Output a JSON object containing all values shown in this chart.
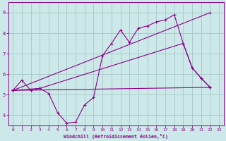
{
  "xlabel": "Windchill (Refroidissement éolien,°C)",
  "bg_color": "#cce8e8",
  "line_color": "#880088",
  "grid_color": "#aacccc",
  "xlim": [
    -0.5,
    23.5
  ],
  "ylim": [
    3.5,
    9.5
  ],
  "yticks": [
    4,
    5,
    6,
    7,
    8,
    9
  ],
  "xticks": [
    0,
    1,
    2,
    3,
    4,
    5,
    6,
    7,
    8,
    9,
    10,
    11,
    12,
    13,
    14,
    15,
    16,
    17,
    18,
    19,
    20,
    21,
    22,
    23
  ],
  "series": [
    {
      "x": [
        0,
        1,
        2,
        3,
        4,
        5,
        6,
        7,
        8,
        9,
        10,
        11,
        12,
        13,
        14,
        15,
        16,
        17,
        18,
        19,
        20,
        21,
        22
      ],
      "y": [
        5.2,
        5.7,
        5.2,
        5.3,
        5.05,
        4.1,
        3.6,
        3.65,
        4.5,
        4.85,
        6.9,
        7.5,
        8.15,
        7.55,
        8.25,
        8.35,
        8.55,
        8.65,
        8.9,
        7.5,
        6.3,
        5.8,
        5.35
      ]
    },
    {
      "x": [
        0,
        22
      ],
      "y": [
        5.2,
        5.35
      ]
    },
    {
      "x": [
        0,
        22
      ],
      "y": [
        5.2,
        9.0
      ]
    },
    {
      "x": [
        0,
        3,
        19,
        20,
        21,
        22
      ],
      "y": [
        5.2,
        5.3,
        7.5,
        6.3,
        5.8,
        5.35
      ]
    }
  ]
}
